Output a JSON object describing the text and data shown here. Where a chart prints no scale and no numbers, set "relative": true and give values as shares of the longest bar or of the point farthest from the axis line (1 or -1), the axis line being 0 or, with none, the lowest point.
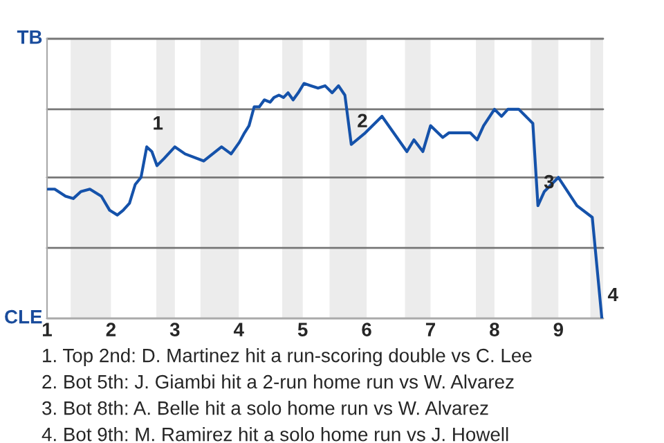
{
  "chart_data": {
    "type": "line",
    "relative": true,
    "x": [
      1.02,
      1.12,
      1.29,
      1.41,
      1.53,
      1.67,
      1.85,
      1.98,
      2.1,
      2.19,
      2.29,
      2.38,
      2.47,
      2.56,
      2.64,
      2.72,
      2.83,
      3.0,
      3.16,
      3.45,
      3.73,
      3.88,
      4.01,
      4.09,
      4.16,
      4.24,
      4.32,
      4.4,
      4.49,
      4.55,
      4.63,
      4.7,
      4.77,
      4.85,
      4.93,
      5.02,
      5.13,
      5.24,
      5.35,
      5.46,
      5.56,
      5.66,
      5.76,
      5.98,
      6.24,
      6.63,
      6.74,
      6.88,
      7.0,
      7.19,
      7.29,
      7.62,
      7.73,
      7.83,
      8.0,
      8.11,
      8.21,
      8.38,
      8.49,
      8.6,
      8.68,
      8.78,
      9.0,
      9.29,
      9.53,
      9.68
    ],
    "series": [
      {
        "color": "#1552aa",
        "values": [
          0.55,
          0.55,
          0.52,
          0.51,
          0.54,
          0.55,
          0.52,
          0.46,
          0.44,
          0.46,
          0.49,
          0.57,
          0.6,
          0.73,
          0.71,
          0.65,
          0.68,
          0.73,
          0.7,
          0.67,
          0.73,
          0.7,
          0.75,
          0.79,
          0.82,
          0.9,
          0.9,
          0.93,
          0.92,
          0.94,
          0.95,
          0.94,
          0.96,
          0.93,
          0.96,
          1,
          0.99,
          0.98,
          0.99,
          0.96,
          0.99,
          0.95,
          0.74,
          0.79,
          0.86,
          0.71,
          0.76,
          0.71,
          0.82,
          0.77,
          0.79,
          0.79,
          0.76,
          0.82,
          0.89,
          0.86,
          0.89,
          0.89,
          0.86,
          0.83,
          0.48,
          0.54,
          0.6,
          0.48,
          0.43,
          0
        ]
      }
    ],
    "xlim": [
      1,
      9.7
    ],
    "xticks": [
      1,
      2,
      3,
      4,
      5,
      6,
      7,
      8,
      9
    ],
    "tick_labels": "x",
    "marker": "none",
    "line_style": "solid",
    "ref_lines": [
      {
        "axis": "y",
        "value": 0,
        "label": "CLE",
        "color": "#aaaaaa"
      },
      {
        "axis": "y",
        "value": 0.3,
        "color": "#777777"
      },
      {
        "axis": "y",
        "value": 0.6,
        "color": "#777777"
      },
      {
        "axis": "y",
        "value": 0.89,
        "color": "#777777"
      },
      {
        "axis": "y",
        "value": 1.19,
        "label": "TB",
        "color": "#777777"
      }
    ],
    "bands": [
      {
        "axis": "x",
        "from": 1.37,
        "to": 2,
        "color": "#ececec"
      },
      {
        "axis": "x",
        "from": 2.71,
        "to": 3,
        "color": "#ececec"
      },
      {
        "axis": "x",
        "from": 3.4,
        "to": 4,
        "color": "#ececec"
      },
      {
        "axis": "x",
        "from": 4.68,
        "to": 5,
        "color": "#ececec"
      },
      {
        "axis": "x",
        "from": 5.42,
        "to": 6,
        "color": "#ececec"
      },
      {
        "axis": "x",
        "from": 6.6,
        "to": 7,
        "color": "#ececec"
      },
      {
        "axis": "x",
        "from": 7.71,
        "to": 8,
        "color": "#ececec"
      },
      {
        "axis": "x",
        "from": 8.58,
        "to": 9,
        "color": "#ececec"
      },
      {
        "axis": "x",
        "from": 9.5,
        "to": 9.7,
        "color": "#ececec"
      }
    ],
    "annotations": [
      {
        "text": "1",
        "x": 2.56,
        "y": 0.73
      },
      {
        "text": "2",
        "x": 5.76,
        "y": 0.74
      },
      {
        "text": "3",
        "x": 8.68,
        "y": 0.48
      },
      {
        "text": "4",
        "x": 9.68,
        "y": 0
      },
      "1. Top 2nd: D. Martinez hit a run-scoring double vs C. Lee",
      "2. Bot 5th: J. Giambi hit a 2-run home run vs W. Alvarez",
      "3. Bot 8th: A. Belle hit a solo home run vs W. Alvarez",
      "4. Bot 9th: M. Ramirez hit a solo home run vs J. Howell"
    ]
  }
}
